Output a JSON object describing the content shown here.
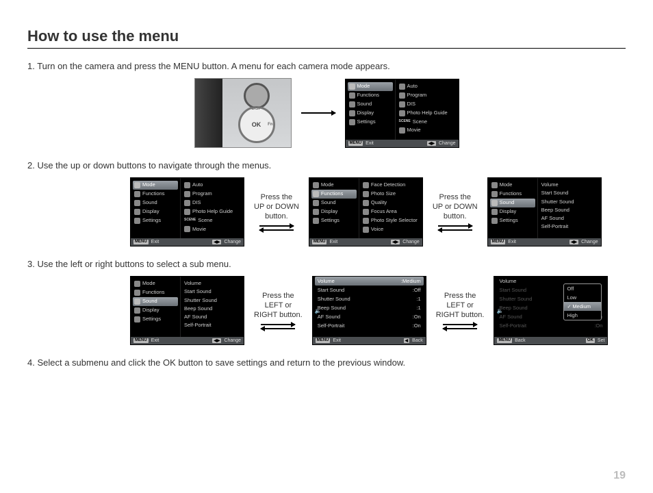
{
  "page_number": "19",
  "title": "How to use the menu",
  "steps": {
    "s1": "1. Turn on the camera and press the MENU button. A menu for each camera mode appears.",
    "s2": "2. Use the up or down buttons to navigate through the menus.",
    "s3": "3. Use the left or right buttons to select a sub menu.",
    "s4": "4. Select a submenu and click the OK button to save settings and return to the previous window."
  },
  "captions": {
    "updown": "Press the\nUP or DOWN\nbutton.",
    "leftright": "Press the\nLEFT or\nRIGHT button."
  },
  "camera": {
    "ok": "OK",
    "disp": "DISP",
    "fn": "Fn"
  },
  "menu_left": {
    "mode": "Mode",
    "functions": "Functions",
    "sound": "Sound",
    "display": "Display",
    "settings": "Settings"
  },
  "mode_right": {
    "auto": "Auto",
    "program": "Program",
    "dis": "DIS",
    "help": "Photo Help Guide",
    "scene": "Scene",
    "movie": "Movie",
    "scene_tag": "SCENE"
  },
  "func_right": {
    "face": "Face Detection",
    "size": "Photo Size",
    "quality": "Quality",
    "focus": "Focus Area",
    "style": "Photo Style Selector",
    "voice": "Voice"
  },
  "sound_right": {
    "volume": "Volume",
    "start": "Start Sound",
    "shutter": "Shutter Sound",
    "beep": "Beep Sound",
    "af": "AF Sound",
    "self": "Self-Portrait"
  },
  "sound_vals": {
    "volume": ":Medium",
    "start": ":Off",
    "shutter": ":1",
    "beep": ":1",
    "af": ":On",
    "self": ":On"
  },
  "popup": {
    "off": "Off",
    "low": "Low",
    "medium": "Medium",
    "high": "High"
  },
  "footer": {
    "menu": "MENU",
    "exit": "Exit",
    "change": "Change",
    "back": "Back",
    "set": "Set",
    "ok": "OK",
    "arrow": "◀▶",
    "left": "◀"
  }
}
